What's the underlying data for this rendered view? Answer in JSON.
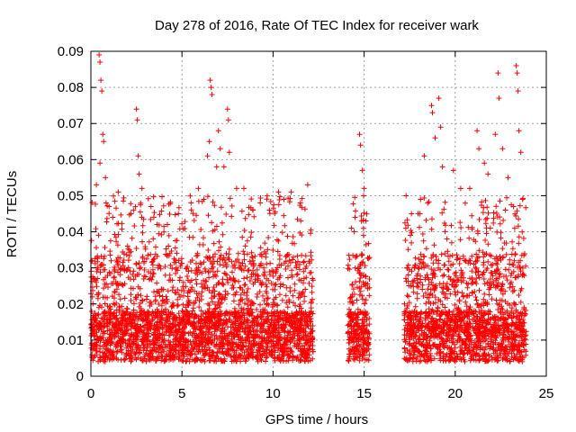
{
  "chart_data": {
    "type": "scatter",
    "title": "Day 278 of 2016, Rate Of TEC Index for receiver wark",
    "xlabel": "GPS time / hours",
    "ylabel": "ROTI / TECUs",
    "xlim": [
      0,
      25
    ],
    "ylim": [
      0,
      0.09
    ],
    "xticks": [
      0,
      5,
      10,
      15,
      20,
      25
    ],
    "xtick_labels": [
      "0",
      "5",
      "10",
      "15",
      "20",
      "25"
    ],
    "yticks": [
      0,
      0.01,
      0.02,
      0.03,
      0.04,
      0.05,
      0.06,
      0.07,
      0.08,
      0.09
    ],
    "ytick_labels": [
      "0",
      "0.01",
      "0.02",
      "0.03",
      "0.04",
      "0.05",
      "0.06",
      "0.07",
      "0.08",
      "0.09"
    ],
    "grid": true,
    "marker": "+",
    "color": "#ff0000",
    "data_segments_hours": [
      [
        0,
        12.2
      ],
      [
        14.1,
        15.3
      ],
      [
        17.2,
        23.9
      ]
    ],
    "series": [
      {
        "name": "ROTI",
        "points": [
          [
            0.3,
            0.053
          ],
          [
            0.45,
            0.089
          ],
          [
            0.5,
            0.087
          ],
          [
            0.55,
            0.082
          ],
          [
            0.6,
            0.079
          ],
          [
            0.65,
            0.067
          ],
          [
            0.7,
            0.065
          ],
          [
            0.5,
            0.059
          ],
          [
            0.8,
            0.055
          ],
          [
            1.0,
            0.047
          ],
          [
            1.2,
            0.044
          ],
          [
            1.5,
            0.051
          ],
          [
            2.2,
            0.045
          ],
          [
            2.5,
            0.074
          ],
          [
            2.55,
            0.071
          ],
          [
            2.6,
            0.061
          ],
          [
            2.65,
            0.056
          ],
          [
            2.8,
            0.052
          ],
          [
            3.3,
            0.047
          ],
          [
            4.2,
            0.042
          ],
          [
            4.8,
            0.045
          ],
          [
            5.5,
            0.048
          ],
          [
            5.9,
            0.052
          ],
          [
            6.2,
            0.049
          ],
          [
            6.4,
            0.061
          ],
          [
            6.5,
            0.065
          ],
          [
            6.55,
            0.082
          ],
          [
            6.6,
            0.08
          ],
          [
            6.65,
            0.078
          ],
          [
            6.9,
            0.058
          ],
          [
            7.0,
            0.068
          ],
          [
            7.1,
            0.063
          ],
          [
            7.3,
            0.058
          ],
          [
            7.5,
            0.074
          ],
          [
            7.55,
            0.071
          ],
          [
            7.6,
            0.062
          ],
          [
            8.0,
            0.052
          ],
          [
            8.4,
            0.052
          ],
          [
            8.9,
            0.046
          ],
          [
            9.3,
            0.048
          ],
          [
            9.8,
            0.046
          ],
          [
            10.3,
            0.051
          ],
          [
            10.6,
            0.049
          ],
          [
            11.0,
            0.051
          ],
          [
            11.5,
            0.048
          ],
          [
            11.9,
            0.053
          ],
          [
            14.3,
            0.041
          ],
          [
            14.5,
            0.044
          ],
          [
            14.75,
            0.067
          ],
          [
            14.8,
            0.064
          ],
          [
            14.9,
            0.057
          ],
          [
            15.0,
            0.052
          ],
          [
            15.1,
            0.043
          ],
          [
            17.6,
            0.045
          ],
          [
            18.1,
            0.049
          ],
          [
            18.3,
            0.061
          ],
          [
            18.7,
            0.075
          ],
          [
            18.75,
            0.073
          ],
          [
            18.9,
            0.066
          ],
          [
            19.1,
            0.077
          ],
          [
            19.2,
            0.069
          ],
          [
            19.3,
            0.058
          ],
          [
            19.9,
            0.057
          ],
          [
            20.3,
            0.052
          ],
          [
            20.8,
            0.052
          ],
          [
            21.2,
            0.068
          ],
          [
            21.3,
            0.063
          ],
          [
            21.6,
            0.059
          ],
          [
            21.8,
            0.056
          ],
          [
            22.2,
            0.067
          ],
          [
            22.35,
            0.084
          ],
          [
            22.4,
            0.077
          ],
          [
            22.6,
            0.063
          ],
          [
            22.9,
            0.055
          ],
          [
            23.2,
            0.047
          ],
          [
            23.35,
            0.086
          ],
          [
            23.4,
            0.084
          ],
          [
            23.45,
            0.079
          ],
          [
            23.5,
            0.068
          ],
          [
            23.6,
            0.062
          ],
          [
            23.7,
            0.049
          ]
        ]
      }
    ]
  }
}
